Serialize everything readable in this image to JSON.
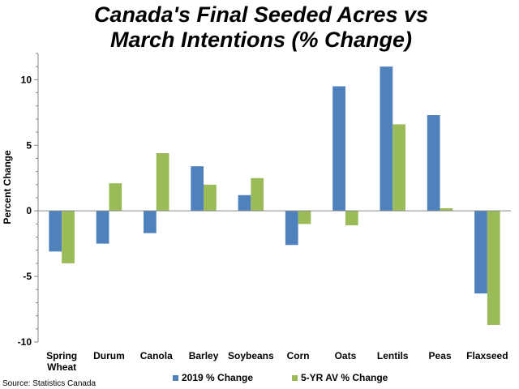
{
  "chart_data": {
    "type": "bar",
    "title_lines": [
      "Canada's Final Seeded Acres vs",
      "March Intentions (% Change)"
    ],
    "categories": [
      [
        "Spring",
        "Wheat"
      ],
      [
        "Durum"
      ],
      [
        "Canola"
      ],
      [
        "Barley"
      ],
      [
        "Soybeans"
      ],
      [
        "Corn"
      ],
      [
        "Oats"
      ],
      [
        "Lentils"
      ],
      [
        "Peas"
      ],
      [
        "Flaxseed"
      ]
    ],
    "series": [
      {
        "name": "2019 % Change",
        "color": "#4f81bd",
        "values": [
          -3.1,
          -2.5,
          -1.7,
          3.4,
          1.2,
          -2.6,
          9.5,
          11.0,
          7.3,
          -6.3
        ]
      },
      {
        "name": "5-YR AV % Change",
        "color": "#9bbb59",
        "values": [
          -4.0,
          2.1,
          4.4,
          2.0,
          2.5,
          -1.0,
          -1.1,
          6.6,
          0.2,
          -8.7
        ]
      }
    ],
    "ylabel": "Percent Change",
    "xlabel": "",
    "ylim": [
      -10,
      12
    ],
    "yticks": [
      -10,
      -5,
      0,
      5,
      10
    ],
    "legend_position": "bottom",
    "grid": false,
    "source": "Source: Statistics Canada"
  }
}
